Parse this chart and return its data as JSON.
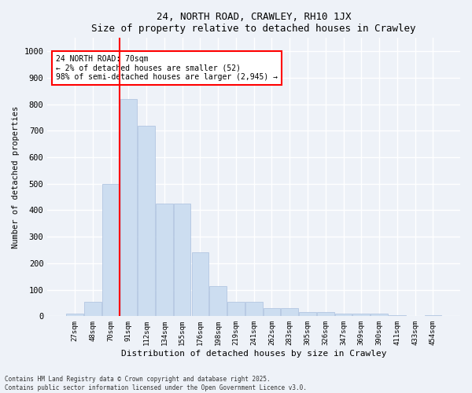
{
  "title": "24, NORTH ROAD, CRAWLEY, RH10 1JX",
  "subtitle": "Size of property relative to detached houses in Crawley",
  "xlabel": "Distribution of detached houses by size in Crawley",
  "ylabel": "Number of detached properties",
  "categories": [
    "27sqm",
    "48sqm",
    "70sqm",
    "91sqm",
    "112sqm",
    "134sqm",
    "155sqm",
    "176sqm",
    "198sqm",
    "219sqm",
    "241sqm",
    "262sqm",
    "283sqm",
    "305sqm",
    "326sqm",
    "347sqm",
    "369sqm",
    "390sqm",
    "411sqm",
    "433sqm",
    "454sqm"
  ],
  "values": [
    10,
    55,
    500,
    820,
    720,
    425,
    425,
    240,
    115,
    55,
    55,
    30,
    30,
    15,
    15,
    10,
    10,
    10,
    5,
    0,
    5
  ],
  "bar_color": "#ccddf0",
  "bar_edge_color": "#aac0de",
  "vline_color": "red",
  "vline_x": 2.5,
  "annotation_text": "24 NORTH ROAD: 70sqm\n← 2% of detached houses are smaller (52)\n98% of semi-detached houses are larger (2,945) →",
  "annotation_box_color": "white",
  "annotation_box_edge": "red",
  "background_color": "#eef2f8",
  "grid_color": "white",
  "footer": "Contains HM Land Registry data © Crown copyright and database right 2025.\nContains public sector information licensed under the Open Government Licence v3.0.",
  "ylim": [
    0,
    1050
  ],
  "yticks": [
    0,
    100,
    200,
    300,
    400,
    500,
    600,
    700,
    800,
    900,
    1000
  ]
}
